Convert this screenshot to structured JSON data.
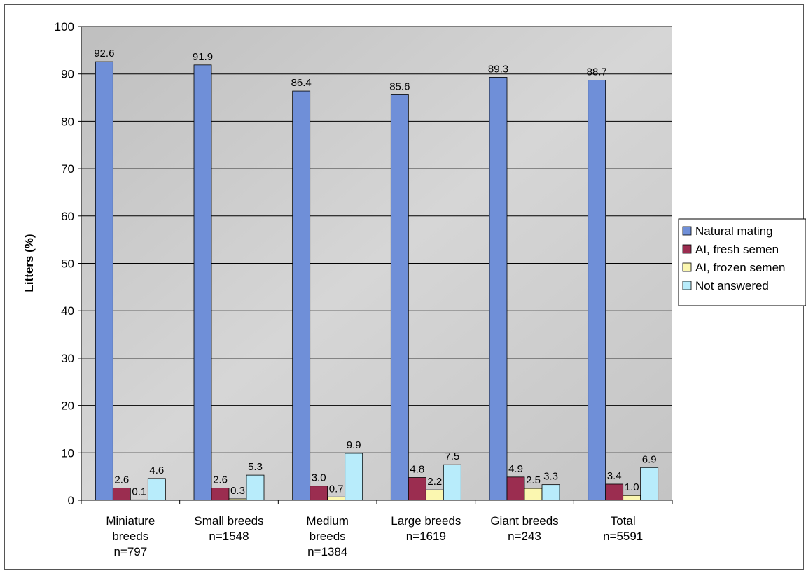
{
  "chart_data": {
    "type": "bar",
    "ylabel": "Litters (%)",
    "xlabel": "",
    "ylim": [
      0,
      100
    ],
    "yticks": [
      "0",
      "10",
      "20",
      "30",
      "40",
      "50",
      "60",
      "70",
      "80",
      "90",
      "100"
    ],
    "grid": true,
    "legend_position": "right",
    "categories": [
      [
        "Miniature",
        "breeds",
        "n=797"
      ],
      [
        "Small breeds",
        "n=1548"
      ],
      [
        "Medium",
        "breeds",
        "n=1384"
      ],
      [
        "Large breeds",
        "n=1619"
      ],
      [
        "Giant breeds",
        "n=243"
      ],
      [
        "Total",
        "n=5591"
      ]
    ],
    "series": [
      {
        "name": "Natural mating",
        "color": "#6f8fd8",
        "values": [
          92.6,
          91.9,
          86.4,
          85.6,
          89.3,
          88.7
        ],
        "labels": [
          "92.6",
          "91.9",
          "86.4",
          "85.6",
          "89.3",
          "88.7"
        ]
      },
      {
        "name": "AI, fresh semen",
        "color": "#9b2d50",
        "values": [
          2.6,
          2.6,
          3.0,
          4.8,
          4.9,
          3.4
        ],
        "labels": [
          "2.6",
          "2.6",
          "3.0",
          "4.8",
          "4.9",
          "3.4"
        ]
      },
      {
        "name": "AI, frozen semen",
        "color": "#fbf7b0",
        "values": [
          0.1,
          0.3,
          0.7,
          2.2,
          2.5,
          1.0
        ],
        "labels": [
          "0.1",
          "0.3",
          "0.7",
          "2.2",
          "2.5",
          "1.0"
        ]
      },
      {
        "name": "Not answered",
        "color": "#b8ecfb",
        "values": [
          4.6,
          5.3,
          9.9,
          7.5,
          3.3,
          6.9
        ],
        "labels": [
          "4.6",
          "5.3",
          "9.9",
          "7.5",
          "3.3",
          "6.9"
        ]
      }
    ],
    "plot_background": "#c9c9c9"
  }
}
